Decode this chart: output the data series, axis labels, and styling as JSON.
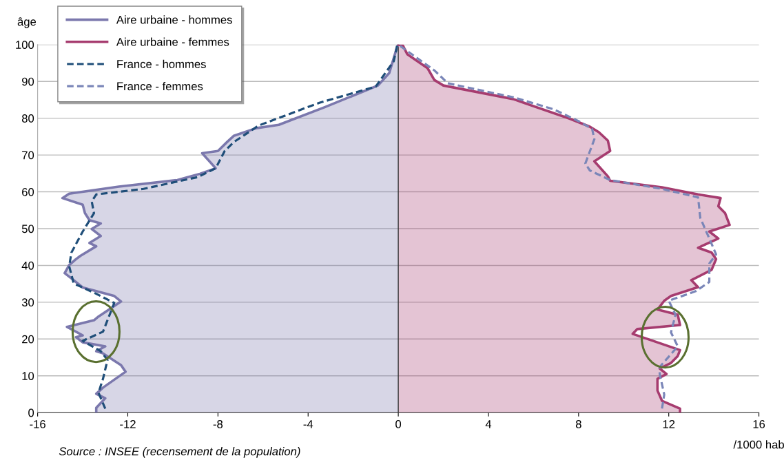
{
  "chart_data": {
    "type": "line",
    "orientation": "horizontal",
    "xlabel": "/1000 hab",
    "ylabel": "âge",
    "xlim": [
      -16,
      16
    ],
    "xticks": [
      -16,
      -12,
      -8,
      -4,
      0,
      4,
      8,
      12,
      16
    ],
    "ylim": [
      0,
      100
    ],
    "yticks": [
      0,
      10,
      20,
      30,
      40,
      50,
      60,
      70,
      80,
      90,
      100
    ],
    "grid": "y",
    "legend": "top left",
    "ref_lines": [
      {
        "axis": "x",
        "value": 0,
        "color": "#333333"
      }
    ],
    "annotations": [
      "Source : INSEE (recensement de la population)"
    ],
    "series": [
      {
        "name": "Aire urbaine - hommes",
        "type": "area",
        "color": "#7b78ad",
        "line_style": "solid",
        "x": [
          0,
          1.3,
          3.9,
          5.1,
          6.8,
          11.1,
          12.9,
          16.1,
          16.7,
          18.0,
          19.1,
          20.5,
          21.0,
          23.3,
          25.1,
          26.1,
          30.2,
          31.7,
          34.0,
          36.0,
          37.9,
          40.1,
          41.7,
          42.6,
          45.2,
          46.1,
          48.0,
          49.9,
          51.4,
          52.3,
          54.2,
          56.5,
          58.3,
          59.5,
          61.4,
          63.2,
          64.9,
          66.4,
          70.5,
          71.1,
          73.5,
          75.2,
          77.3,
          78.2,
          82.9,
          88.9,
          92.3,
          99.2,
          100
        ],
        "values": [
          -13.4,
          -13.4,
          -13.0,
          -13.4,
          -13.1,
          -12.1,
          -12.3,
          -13.1,
          -13.4,
          -13.0,
          -14.0,
          -14.3,
          -14.0,
          -14.7,
          -13.5,
          -13.3,
          -12.3,
          -12.6,
          -14.0,
          -14.4,
          -14.8,
          -14.6,
          -14.3,
          -14.1,
          -13.4,
          -13.7,
          -13.2,
          -13.6,
          -13.2,
          -13.7,
          -13.9,
          -14.0,
          -14.9,
          -14.6,
          -12.4,
          -9.8,
          -8.8,
          -8.1,
          -8.7,
          -8.0,
          -7.6,
          -7.3,
          -6.3,
          -5.3,
          -3.3,
          -0.9,
          -0.4,
          -0.06,
          0
        ]
      },
      {
        "name": "Aire urbaine - femmes",
        "type": "area",
        "color": "#a63c6f",
        "line_style": "solid",
        "x": [
          0,
          1.1,
          3.2,
          6.0,
          9.2,
          10.5,
          12.0,
          13.5,
          15.4,
          17.0,
          21.4,
          22.7,
          23.8,
          26.6,
          28.0,
          30.4,
          31.7,
          34.1,
          36.0,
          38.8,
          41.7,
          43.5,
          44.8,
          47.3,
          49.2,
          51.0,
          54.2,
          56.1,
          58.3,
          59.3,
          61.2,
          63.0,
          64.2,
          68.3,
          71.1,
          73.9,
          76.2,
          77.7,
          79.9,
          85.2,
          88.9,
          90.4,
          93.6,
          97.4,
          99.8,
          100
        ],
        "values": [
          12.5,
          12.5,
          11.7,
          11.5,
          11.5,
          11.9,
          11.6,
          12.1,
          12.4,
          12.5,
          10.4,
          10.6,
          12.5,
          12.4,
          11.5,
          11.8,
          12.1,
          13.3,
          13.0,
          13.9,
          14.1,
          13.9,
          13.3,
          14.2,
          13.8,
          14.7,
          14.5,
          14.2,
          14.3,
          13.3,
          11.7,
          9.4,
          9.3,
          8.7,
          9.4,
          9.3,
          8.9,
          8.5,
          7.6,
          5.1,
          2.0,
          1.6,
          1.3,
          0.4,
          0.2,
          0
        ]
      },
      {
        "name": "France - hommes",
        "color": "#1f4e79",
        "line_style": "dashed",
        "x": [
          1.1,
          5.4,
          9.2,
          14.3,
          16.7,
          19.5,
          22.0,
          29.8,
          32.3,
          35.1,
          39.8,
          43.5,
          49.2,
          54.2,
          57.4,
          59.3,
          60.8,
          64.0,
          66.4,
          71.1,
          73.5,
          78.0,
          84.2,
          88.6,
          95.5,
          99.8,
          100
        ],
        "values": [
          -13.0,
          -13.3,
          -13.1,
          -12.9,
          -13.2,
          -14.0,
          -13.1,
          -12.6,
          -13.4,
          -14.4,
          -14.6,
          -14.5,
          -14.0,
          -13.5,
          -13.6,
          -13.4,
          -11.3,
          -8.9,
          -8.1,
          -7.7,
          -7.3,
          -6.2,
          -3.5,
          -1.0,
          -0.2,
          -0.05,
          0
        ]
      },
      {
        "name": "France - femmes",
        "color": "#7a86b8",
        "line_style": "dashed",
        "x": [
          1.1,
          4.9,
          10.5,
          12.4,
          18.0,
          21.8,
          26.6,
          30.4,
          33.0,
          35.5,
          40.5,
          43.0,
          47.3,
          52.9,
          58.5,
          60.8,
          63.2,
          65.8,
          67.7,
          74.3,
          77.1,
          79.2,
          82.4,
          85.7,
          89.5,
          93.0,
          98.7,
          100
        ],
        "values": [
          11.7,
          11.8,
          11.6,
          11.6,
          12.4,
          12.1,
          12.3,
          12.0,
          13.2,
          13.8,
          13.8,
          14.1,
          13.8,
          13.4,
          13.3,
          11.7,
          9.4,
          8.5,
          8.3,
          8.7,
          8.6,
          8.0,
          6.9,
          5.1,
          2.2,
          1.6,
          0.3,
          0
        ]
      }
    ]
  }
}
